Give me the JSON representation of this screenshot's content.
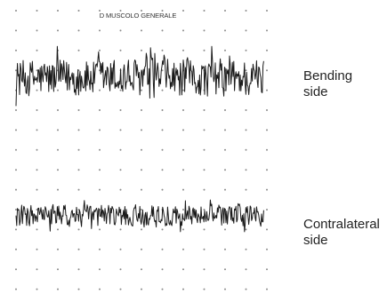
{
  "chart_data": {
    "type": "line",
    "title": "D MUSCOLO GENERALE",
    "series": [
      {
        "name": "Bending side",
        "name_lines": [
          "Bending",
          "side"
        ],
        "description": "high-amplitude dense EMG burst",
        "amplitude_range_divisions": [
          -1.4,
          1.6
        ]
      },
      {
        "name": "Contralateral side",
        "name_lines": [
          "Contralateral",
          "side"
        ],
        "description": "lower-amplitude EMG activity",
        "amplitude_range_divisions": [
          -0.8,
          0.9
        ]
      }
    ],
    "grid": "dotted",
    "xlabel": "",
    "ylabel": ""
  }
}
